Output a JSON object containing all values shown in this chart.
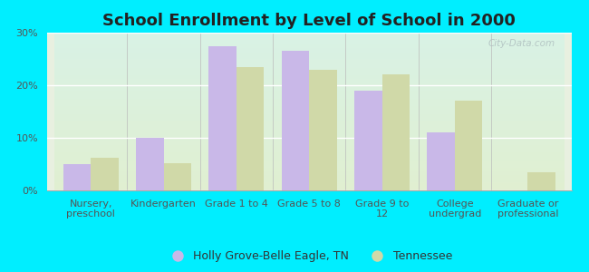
{
  "title": "School Enrollment by Level of School in 2000",
  "categories": [
    "Nursery,\npreschool",
    "Kindergarten",
    "Grade 1 to 4",
    "Grade 5 to 8",
    "Grade 9 to\n12",
    "College\nundergrad",
    "Graduate or\nprofessional"
  ],
  "holly_grove": [
    5.0,
    10.0,
    27.5,
    26.5,
    19.0,
    11.0,
    0.0
  ],
  "tennessee": [
    6.2,
    5.2,
    23.5,
    23.0,
    22.0,
    17.0,
    3.5
  ],
  "holly_color": "#c9b8e8",
  "tennessee_color": "#d0d9a8",
  "background_outer": "#00eeff",
  "background_top": "#cce8e8",
  "background_bottom": "#d8e8c8",
  "ylim": [
    0,
    30
  ],
  "yticks": [
    0,
    10,
    20,
    30
  ],
  "ytick_labels": [
    "0%",
    "10%",
    "20%",
    "30%"
  ],
  "legend_holly": "Holly Grove-Belle Eagle, TN",
  "legend_tn": "Tennessee",
  "bar_width": 0.38,
  "title_fontsize": 13,
  "tick_fontsize": 8,
  "legend_fontsize": 9
}
